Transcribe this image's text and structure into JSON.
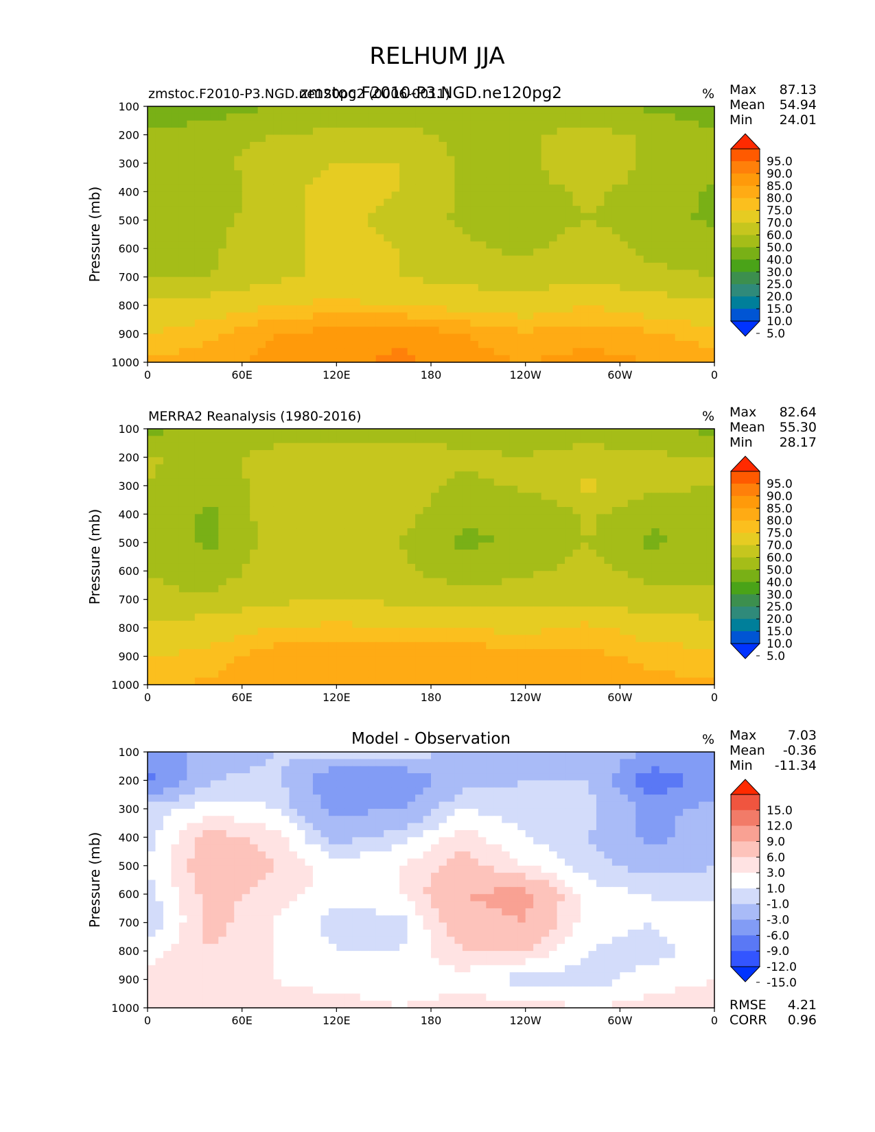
{
  "figure": {
    "title": "RELHUM JJA",
    "units_symbol": "%"
  },
  "colors": {
    "relhum": [
      "#0033ff",
      "#0055d4",
      "#007f9a",
      "#2f8a7a",
      "#3c8f4e",
      "#4aa318",
      "#79b016",
      "#a5bd18",
      "#c6c61e",
      "#e6cc22",
      "#fbbf1e",
      "#ffab14",
      "#ff9a0a",
      "#ff800a",
      "#ff5a00",
      "#ff2a00"
    ],
    "diff": [
      "#0033ff",
      "#3355ff",
      "#5a78f5",
      "#829cf5",
      "#a9bbf7",
      "#d3dcfa",
      "#ffffff",
      "#ffe3e3",
      "#fdc3bb",
      "#f9a193",
      "#f27b68",
      "#f0553f",
      "#ff2a00"
    ]
  },
  "chart_data": [
    {
      "type": "contour",
      "title_left": "zmstoc.F2010-P3.NGD.ne120pg2 (0006-0011)",
      "title_center": "zmstoc.F2010-P3.NGD.ne120pg2",
      "title_right": "%",
      "xlabel": "",
      "ylabel": "Pressure (mb)",
      "xlim": [
        0,
        360
      ],
      "ylim": [
        1000,
        100
      ],
      "x_ticks": [
        "0",
        "60E",
        "120E",
        "180",
        "120W",
        "60W",
        "0"
      ],
      "y_ticks": [
        "100",
        "200",
        "300",
        "400",
        "500",
        "600",
        "700",
        "800",
        "900",
        "1000"
      ],
      "stats": [
        {
          "label": "Max",
          "value": "87.13"
        },
        {
          "label": "Mean",
          "value": "54.94"
        },
        {
          "label": "Min",
          "value": "24.01"
        }
      ],
      "levels": [
        "95.0",
        "90.0",
        "85.0",
        "80.0",
        "75.0",
        "70.0",
        "60.0",
        "50.0",
        "40.0",
        "30.0",
        "25.0",
        "20.0",
        "15.0",
        "10.0",
        "5.0"
      ],
      "approx_field": [
        {
          "p": 100,
          "values": [
            32,
            36,
            40,
            42,
            46,
            46,
            46,
            42,
            38,
            34
          ]
        },
        {
          "p": 200,
          "values": [
            42,
            44,
            50,
            52,
            52,
            48,
            48,
            54,
            48,
            42
          ]
        },
        {
          "p": 300,
          "values": [
            48,
            46,
            58,
            60,
            60,
            48,
            48,
            58,
            48,
            44
          ]
        },
        {
          "p": 400,
          "values": [
            44,
            40,
            58,
            62,
            60,
            48,
            46,
            52,
            46,
            38
          ]
        },
        {
          "p": 500,
          "values": [
            44,
            46,
            58,
            62,
            58,
            48,
            44,
            50,
            44,
            38
          ]
        },
        {
          "p": 600,
          "values": [
            48,
            48,
            58,
            62,
            60,
            52,
            48,
            56,
            48,
            46
          ]
        },
        {
          "p": 700,
          "values": [
            50,
            50,
            58,
            62,
            60,
            56,
            54,
            58,
            52,
            50
          ]
        },
        {
          "p": 800,
          "values": [
            62,
            66,
            70,
            72,
            70,
            68,
            66,
            70,
            66,
            62
          ]
        },
        {
          "p": 900,
          "values": [
            70,
            74,
            80,
            82,
            84,
            80,
            76,
            78,
            76,
            72
          ]
        },
        {
          "p": 1000,
          "values": [
            76,
            78,
            82,
            84,
            86,
            82,
            80,
            82,
            80,
            78
          ]
        }
      ]
    },
    {
      "type": "contour",
      "title_left": "MERRA2 Reanalysis (1980-2016)",
      "title_center": "",
      "title_right": "%",
      "xlabel": "",
      "ylabel": "Pressure (mb)",
      "xlim": [
        0,
        360
      ],
      "ylim": [
        1000,
        100
      ],
      "x_ticks": [
        "0",
        "60E",
        "120E",
        "180",
        "120W",
        "60W",
        "0"
      ],
      "y_ticks": [
        "100",
        "200",
        "300",
        "400",
        "500",
        "600",
        "700",
        "800",
        "900",
        "1000"
      ],
      "stats": [
        {
          "label": "Max",
          "value": "82.64"
        },
        {
          "label": "Mean",
          "value": "55.30"
        },
        {
          "label": "Min",
          "value": "28.17"
        }
      ],
      "levels": [
        "95.0",
        "90.0",
        "85.0",
        "80.0",
        "75.0",
        "70.0",
        "60.0",
        "50.0",
        "40.0",
        "30.0",
        "25.0",
        "20.0",
        "15.0",
        "10.0",
        "5.0"
      ],
      "approx_field": [
        {
          "p": 100,
          "values": [
            38,
            40,
            44,
            46,
            46,
            46,
            44,
            42,
            40,
            38
          ]
        },
        {
          "p": 200,
          "values": [
            52,
            46,
            54,
            54,
            54,
            52,
            50,
            56,
            52,
            50
          ]
        },
        {
          "p": 300,
          "values": [
            50,
            42,
            56,
            58,
            56,
            48,
            52,
            62,
            52,
            50
          ]
        },
        {
          "p": 400,
          "values": [
            48,
            38,
            56,
            58,
            54,
            42,
            40,
            52,
            42,
            46
          ]
        },
        {
          "p": 500,
          "values": [
            48,
            38,
            54,
            56,
            50,
            38,
            42,
            50,
            38,
            46
          ]
        },
        {
          "p": 600,
          "values": [
            50,
            44,
            56,
            56,
            52,
            44,
            48,
            54,
            46,
            48
          ]
        },
        {
          "p": 700,
          "values": [
            52,
            52,
            58,
            60,
            58,
            56,
            56,
            58,
            54,
            52
          ]
        },
        {
          "p": 800,
          "values": [
            62,
            66,
            70,
            72,
            70,
            70,
            68,
            72,
            66,
            64
          ]
        },
        {
          "p": 900,
          "values": [
            70,
            72,
            78,
            78,
            78,
            80,
            76,
            76,
            74,
            72
          ]
        },
        {
          "p": 1000,
          "values": [
            74,
            76,
            80,
            80,
            78,
            80,
            78,
            78,
            76,
            76
          ]
        }
      ]
    },
    {
      "type": "contour",
      "title_left": "",
      "title_center": "Model - Observation",
      "title_right": "%",
      "xlabel": "",
      "ylabel": "Pressure (mb)",
      "xlim": [
        0,
        360
      ],
      "ylim": [
        1000,
        100
      ],
      "x_ticks": [
        "0",
        "60E",
        "120E",
        "180",
        "120W",
        "60W",
        "0"
      ],
      "y_ticks": [
        "100",
        "200",
        "300",
        "400",
        "500",
        "600",
        "700",
        "800",
        "900",
        "1000"
      ],
      "stats": [
        {
          "label": "Max",
          "value": "7.03"
        },
        {
          "label": "Mean",
          "value": "-0.36"
        },
        {
          "label": "Min",
          "value": "-11.34"
        }
      ],
      "levels": [
        "15.0",
        "12.0",
        "9.0",
        "6.0",
        "3.0",
        "1.0",
        "-1.0",
        "-3.0",
        "-6.0",
        "-9.0",
        "-12.0",
        "-15.0"
      ],
      "metrics": [
        {
          "label": "RMSE",
          "value": "4.21"
        },
        {
          "label": "CORR",
          "value": "0.96"
        }
      ],
      "approx_field": [
        {
          "p": 100,
          "values": [
            -6,
            -6,
            -3,
            -2,
            -2,
            -3,
            -3,
            -4,
            -6,
            -6
          ]
        },
        {
          "p": 200,
          "values": [
            -10,
            -3,
            -2,
            -9,
            -9,
            -4,
            -3,
            -3,
            -11,
            -8
          ]
        },
        {
          "p": 300,
          "values": [
            -2,
            0,
            -1,
            -7,
            -6,
            -1,
            -2,
            -2,
            -7,
            -5
          ]
        },
        {
          "p": 400,
          "values": [
            -2,
            4,
            2,
            -4,
            -2,
            2,
            -1,
            -3,
            -7,
            -4
          ]
        },
        {
          "p": 500,
          "values": [
            -1,
            5,
            3,
            0,
            1,
            4,
            1,
            -2,
            -4,
            -3
          ]
        },
        {
          "p": 600,
          "values": [
            -2,
            4,
            2,
            0,
            1,
            6,
            7,
            0,
            -1,
            -2
          ]
        },
        {
          "p": 700,
          "values": [
            -3,
            4,
            1,
            -2,
            -2,
            5,
            6,
            0,
            -1,
            1
          ]
        },
        {
          "p": 800,
          "values": [
            0,
            3,
            1,
            -1,
            -1,
            3,
            3,
            -1,
            -2,
            0
          ]
        },
        {
          "p": 900,
          "values": [
            2,
            1,
            1,
            0,
            0,
            0,
            -2,
            -2,
            0,
            1
          ]
        },
        {
          "p": 1000,
          "values": [
            1,
            2,
            2,
            2,
            1,
            2,
            2,
            1,
            2,
            2
          ]
        }
      ]
    }
  ]
}
